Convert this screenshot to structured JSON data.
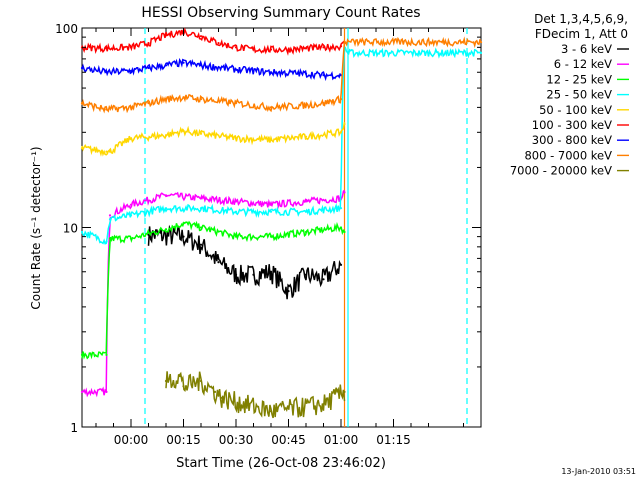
{
  "chart_data": {
    "type": "line",
    "title": "HESSI Observing Summary Count Rates",
    "xlabel": "Start Time (26-Oct-08 23:46:02)",
    "ylabel": "Count Rate (s⁻¹ detector⁻¹)",
    "yscale": "log",
    "ylim": [
      1,
      100
    ],
    "xlim_minutes": [
      -14,
      100
    ],
    "x_ticks": [
      {
        "label": "00:00",
        "minutes": 0
      },
      {
        "label": "00:15",
        "minutes": 15
      },
      {
        "label": "00:30",
        "minutes": 30
      },
      {
        "label": "00:45",
        "minutes": 45
      },
      {
        "label": "01:00",
        "minutes": 60
      },
      {
        "label": "01:15",
        "minutes": 75
      }
    ],
    "y_ticks": [
      {
        "label": "1",
        "value": 1
      },
      {
        "label": "10",
        "value": 10
      },
      {
        "label": "100",
        "value": 100
      }
    ],
    "legend": {
      "header": [
        "Det 1,3,4,5,6,9,",
        "FDecim 1, Att 0"
      ],
      "placement": "right"
    },
    "vertical_lines": [
      {
        "x_minutes": 4,
        "style": "dashed",
        "color": "#00ffff"
      },
      {
        "x_minutes": 61,
        "style": "solid",
        "color": "#ff7f00"
      },
      {
        "x_minutes": 62,
        "style": "solid",
        "color": "#00ffff"
      },
      {
        "x_minutes": 96,
        "style": "dashed",
        "color": "#00ffff"
      }
    ],
    "series": [
      {
        "name": "3 - 6 keV",
        "color": "#000000",
        "points": [
          [
            5,
            9.2
          ],
          [
            15,
            9.0
          ],
          [
            20,
            8.2
          ],
          [
            25,
            6.7
          ],
          [
            30,
            5.8
          ],
          [
            35,
            5.8
          ],
          [
            40,
            6.0
          ],
          [
            45,
            4.8
          ],
          [
            50,
            5.8
          ],
          [
            55,
            5.5
          ],
          [
            60,
            6.5
          ]
        ]
      },
      {
        "name": "6 - 12 keV",
        "color": "#ff00ff",
        "points": [
          [
            -14,
            1.5
          ],
          [
            -7,
            1.5
          ],
          [
            -6,
            11.5
          ],
          [
            0,
            13.0
          ],
          [
            10,
            14.5
          ],
          [
            20,
            14.0
          ],
          [
            30,
            13.5
          ],
          [
            40,
            13.0
          ],
          [
            50,
            13.5
          ],
          [
            60,
            14.0
          ],
          [
            61,
            15.0
          ]
        ]
      },
      {
        "name": "12 - 25 keV",
        "color": "#00ff00",
        "points": [
          [
            -14,
            2.3
          ],
          [
            -7,
            2.3
          ],
          [
            -6,
            8.8
          ],
          [
            0,
            8.8
          ],
          [
            10,
            9.8
          ],
          [
            15,
            10.5
          ],
          [
            20,
            10.0
          ],
          [
            30,
            9.0
          ],
          [
            40,
            9.0
          ],
          [
            50,
            9.5
          ],
          [
            60,
            10.0
          ],
          [
            61,
            9.5
          ]
        ]
      },
      {
        "name": "25 - 50 keV",
        "color": "#00ffff",
        "points": [
          [
            -14,
            9.5
          ],
          [
            -7,
            8.5
          ],
          [
            -6,
            11.0
          ],
          [
            0,
            11.5
          ],
          [
            10,
            12.5
          ],
          [
            20,
            12.5
          ],
          [
            30,
            12.0
          ],
          [
            40,
            12.0
          ],
          [
            50,
            12.0
          ],
          [
            60,
            12.5
          ],
          [
            61,
            80
          ],
          [
            62,
            75
          ],
          [
            100,
            75
          ]
        ]
      },
      {
        "name": "50 - 100 keV",
        "color": "#ffd700",
        "points": [
          [
            -14,
            25.0
          ],
          [
            -7,
            24.0
          ],
          [
            -6,
            24.0
          ],
          [
            0,
            28.0
          ],
          [
            10,
            29.0
          ],
          [
            15,
            30.5
          ],
          [
            20,
            29.5
          ],
          [
            30,
            28.0
          ],
          [
            40,
            27.5
          ],
          [
            50,
            28.5
          ],
          [
            60,
            30.0
          ],
          [
            61,
            33.0
          ]
        ]
      },
      {
        "name": "100 - 300 keV",
        "color": "#ff0000",
        "points": [
          [
            -14,
            80
          ],
          [
            -7,
            79
          ],
          [
            0,
            80
          ],
          [
            5,
            84
          ],
          [
            10,
            92
          ],
          [
            15,
            96
          ],
          [
            20,
            91
          ],
          [
            25,
            84
          ],
          [
            30,
            80
          ],
          [
            35,
            78
          ],
          [
            40,
            78
          ],
          [
            45,
            78
          ],
          [
            50,
            79
          ],
          [
            55,
            80
          ],
          [
            60,
            81
          ],
          [
            61,
            84
          ]
        ]
      },
      {
        "name": "300 - 800 keV",
        "color": "#0000ff",
        "points": [
          [
            -14,
            63
          ],
          [
            -7,
            60
          ],
          [
            0,
            61
          ],
          [
            5,
            63
          ],
          [
            10,
            65
          ],
          [
            15,
            67
          ],
          [
            20,
            65
          ],
          [
            30,
            62
          ],
          [
            40,
            60
          ],
          [
            50,
            59
          ],
          [
            55,
            58
          ],
          [
            60,
            58
          ]
        ]
      },
      {
        "name": "800 - 7000 keV",
        "color": "#ff7f00",
        "points": [
          [
            -14,
            42
          ],
          [
            -7,
            39
          ],
          [
            0,
            40
          ],
          [
            5,
            42
          ],
          [
            10,
            44
          ],
          [
            15,
            45
          ],
          [
            20,
            44
          ],
          [
            30,
            42
          ],
          [
            40,
            40
          ],
          [
            50,
            41
          ],
          [
            55,
            42
          ],
          [
            60,
            44
          ],
          [
            61,
            85
          ],
          [
            100,
            85
          ]
        ]
      },
      {
        "name": "7000 - 20000 keV",
        "color": "#808000",
        "points": [
          [
            10,
            1.7
          ],
          [
            14,
            1.8
          ],
          [
            15,
            1.6
          ],
          [
            20,
            1.7
          ],
          [
            24,
            1.5
          ],
          [
            26,
            1.4
          ],
          [
            40,
            1.2
          ],
          [
            55,
            1.3
          ],
          [
            61,
            1.5
          ]
        ]
      }
    ],
    "footer": "13-Jan-2010 03:51"
  }
}
